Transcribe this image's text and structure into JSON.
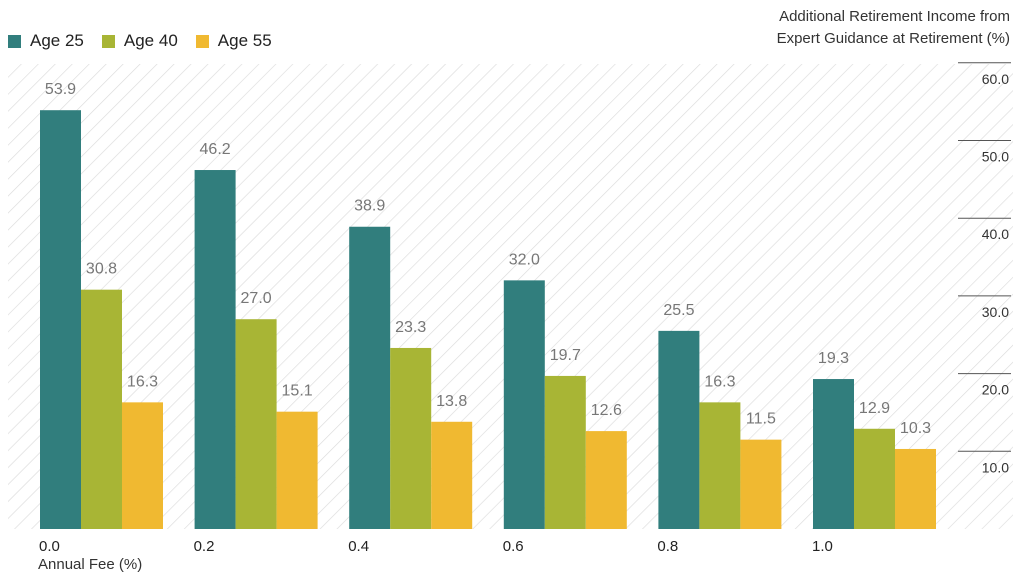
{
  "chart_data": {
    "type": "bar",
    "title": "",
    "xlabel": "Annual Fee (%)",
    "ylabel": "Additional Retirement Income from Expert Guidance at Retirement (%)",
    "ylabel_lines": [
      "Additional Retirement Income from",
      "Expert Guidance at Retirement (%)"
    ],
    "categories": [
      "0.0",
      "0.2",
      "0.4",
      "0.6",
      "0.8",
      "1.0"
    ],
    "series": [
      {
        "name": "Age 25",
        "color": "#317e7d",
        "values": [
          53.9,
          46.2,
          38.9,
          32.0,
          25.5,
          19.3
        ],
        "labels": [
          "53.9",
          "46.2",
          "38.9",
          "32.0",
          "25.5",
          "19.3"
        ]
      },
      {
        "name": "Age 40",
        "color": "#a8b535",
        "values": [
          30.8,
          27.0,
          23.3,
          19.7,
          16.3,
          12.9
        ],
        "labels": [
          "30.8",
          "27.0",
          "23.3",
          "19.7",
          "16.3",
          "12.9"
        ]
      },
      {
        "name": "Age 55",
        "color": "#f0b931",
        "values": [
          16.3,
          15.1,
          13.8,
          12.6,
          11.5,
          10.3
        ],
        "labels": [
          "16.3",
          "15.1",
          "13.8",
          "12.6",
          "11.5",
          "10.3"
        ]
      }
    ],
    "y_ticks": [
      "10.0",
      "20.0",
      "30.0",
      "40.0",
      "50.0",
      "60.0"
    ],
    "y_tick_values": [
      10,
      20,
      30,
      40,
      50,
      60
    ],
    "ylim": [
      0,
      60
    ],
    "y_axis_position": "right",
    "legend_position": "top-left",
    "grid": false,
    "background": "diagonal hatch"
  }
}
